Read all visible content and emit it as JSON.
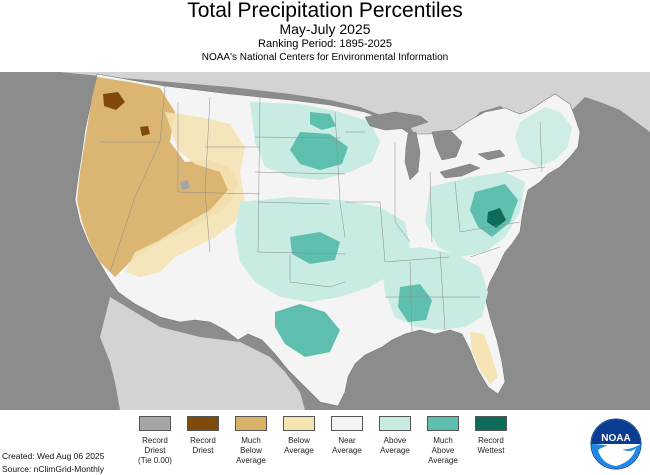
{
  "header": {
    "title": "Total Precipitation Percentiles",
    "subtitle": "May-July 2025",
    "ranking_period": "Ranking Period: 1895-2025",
    "organization": "NOAA's National Centers for Environmental Information"
  },
  "legend": {
    "items": [
      {
        "label": "Record\nDriest\n(Tie 0.00)",
        "color": "#a6a6a6"
      },
      {
        "label": "Record\nDriest",
        "color": "#7f4a0a"
      },
      {
        "label": "Much\nBelow\nAverage",
        "color": "#d9b26a"
      },
      {
        "label": "Below\nAverage",
        "color": "#f5e3b4"
      },
      {
        "label": "Near\nAverage",
        "color": "#f4f4f4"
      },
      {
        "label": "Above\nAverage",
        "color": "#c8ebe3"
      },
      {
        "label": "Much\nAbove\nAverage",
        "color": "#5fbfae"
      },
      {
        "label": "Record\nWettest",
        "color": "#0d6b5a"
      }
    ]
  },
  "footer": {
    "created": "Created: Wed Aug 06 2025",
    "source": "Source: nClimGrid-Monthly"
  },
  "logo": {
    "text": "NOAA"
  },
  "colors": {
    "ocean": "#8c8c8c",
    "land_outside": "#d3d3d3",
    "great_lakes": "#8c8c8c",
    "record_driest": "#7f4a0a",
    "much_below": "#d9b26a",
    "below": "#f5e3b4",
    "near": "#f4f4f4",
    "above": "#c8ebe3",
    "much_above": "#5fbfae",
    "record_wettest": "#0d6b5a",
    "tie": "#a6a6a6"
  }
}
